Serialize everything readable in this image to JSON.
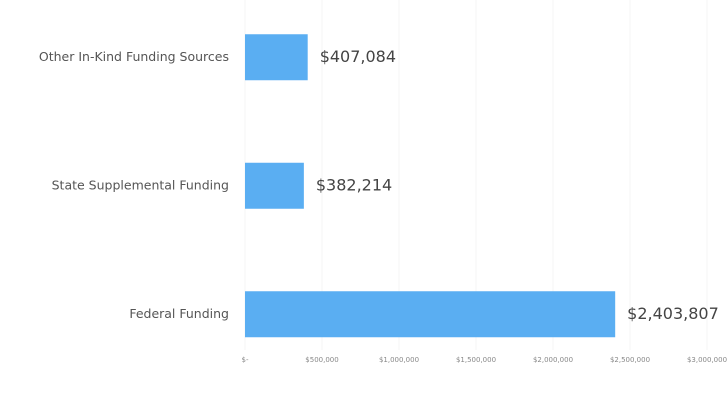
{
  "chart_data": {
    "type": "hbar",
    "categories": [
      "Other In-Kind Funding Sources",
      "State Supplemental Funding",
      "Federal Funding"
    ],
    "values": [
      407084,
      382214,
      2403807
    ],
    "value_labels": [
      "$407,084",
      "$382,214",
      "$2,403,807"
    ],
    "color": "#5aaef2",
    "xlim": [
      0,
      3000000
    ],
    "xticks": [
      {
        "value": 0,
        "label": "$-"
      },
      {
        "value": 500000,
        "label": "$500,000"
      },
      {
        "value": 1000000,
        "label": "$1,000,000"
      },
      {
        "value": 1500000,
        "label": "$1,500,000"
      },
      {
        "value": 2000000,
        "label": "$2,000,000"
      },
      {
        "value": 2500000,
        "label": "$2,500,000"
      },
      {
        "value": 3000000,
        "label": "$3,000,000"
      }
    ],
    "grid": true
  }
}
